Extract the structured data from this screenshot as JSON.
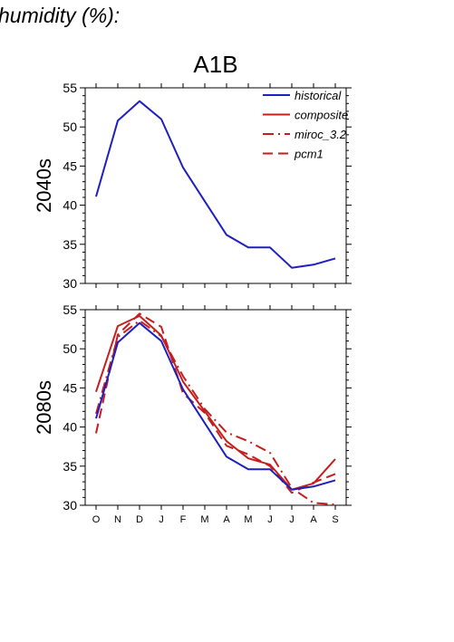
{
  "heading": "humidity (%):",
  "chart_data": {
    "type": "line",
    "title": "A1B",
    "categories": [
      "O",
      "N",
      "D",
      "J",
      "F",
      "M",
      "A",
      "M",
      "J",
      "J",
      "A",
      "S"
    ],
    "ylim": [
      30,
      55
    ],
    "yticks": [
      30,
      35,
      40,
      45,
      50,
      55
    ],
    "legend": {
      "position": "top-right",
      "entries": [
        {
          "name": "historical",
          "color": "#1f1fbf",
          "dash": "solid"
        },
        {
          "name": "composite",
          "color": "#c41e1e",
          "dash": "solid"
        },
        {
          "name": "miroc_3.2",
          "color": "#c41e1e",
          "dash": "dashdot"
        },
        {
          "name": "pcm1",
          "color": "#c41e1e",
          "dash": "dashed"
        }
      ]
    },
    "panels": [
      {
        "label": "2040s",
        "series": [
          {
            "name": "historical",
            "values": [
              41.1,
              50.8,
              53.3,
              51.0,
              44.8,
              40.5,
              36.2,
              34.6,
              34.6,
              32.0,
              32.4,
              33.2
            ]
          }
        ]
      },
      {
        "label": "2080s",
        "series": [
          {
            "name": "historical",
            "values": [
              41.1,
              50.8,
              53.3,
              51.0,
              44.8,
              40.5,
              36.2,
              34.6,
              34.6,
              32.0,
              32.4,
              33.2
            ]
          },
          {
            "name": "composite",
            "values": [
              44.5,
              52.9,
              54.2,
              51.7,
              45.8,
              42.0,
              38.2,
              36.0,
              35.2,
              32.0,
              32.8,
              35.9
            ]
          },
          {
            "name": "miroc_3.2",
            "values": [
              41.7,
              51.5,
              53.6,
              51.6,
              46.5,
              42.3,
              39.3,
              38.2,
              36.7,
              32.2,
              30.3,
              30.1
            ]
          },
          {
            "name": "pcm1",
            "values": [
              39.2,
              51.8,
              54.5,
              52.8,
              44.3,
              41.8,
              37.6,
              36.5,
              35.0,
              31.6,
              32.9,
              34.0
            ]
          }
        ]
      }
    ]
  }
}
